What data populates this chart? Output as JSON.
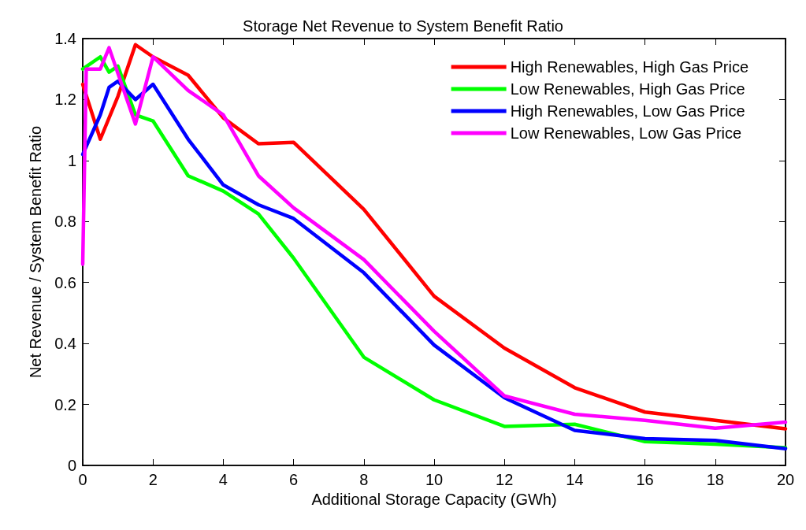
{
  "chart_data": {
    "type": "line",
    "title": "Storage Net Revenue to System Benefit Ratio",
    "xlabel": "Additional Storage Capacity (GWh)",
    "ylabel": "Net Revenue / System Benefit Ratio",
    "xlim": [
      0,
      20
    ],
    "xticks": [
      0,
      2,
      4,
      6,
      8,
      10,
      12,
      14,
      16,
      18,
      20
    ],
    "ylim": [
      0,
      1.4
    ],
    "yticks": [
      0,
      0.2,
      0.4,
      0.6,
      0.8,
      1,
      1.2,
      1.4
    ],
    "grid": false,
    "legend": "top right",
    "marker": "none",
    "line_style": "solid",
    "series": [
      {
        "name": "High Renewables, High Gas Price",
        "color": "#ff0000",
        "x": [
          0,
          0.5,
          1,
          1.5,
          2,
          3,
          4,
          5,
          6,
          8,
          10,
          12,
          14,
          16,
          18,
          20
        ],
        "values": [
          1.25,
          1.07,
          1.21,
          1.38,
          1.34,
          1.28,
          1.14,
          1.055,
          1.06,
          0.84,
          0.555,
          0.385,
          0.255,
          0.175,
          0.148,
          0.12
        ]
      },
      {
        "name": "Low Renewables, High Gas Price",
        "color": "#00ff00",
        "x": [
          0,
          0.5,
          0.75,
          1,
          1.5,
          2,
          3,
          4,
          5,
          6,
          8,
          10,
          12,
          14,
          16,
          18,
          20
        ],
        "values": [
          1.3,
          1.34,
          1.29,
          1.31,
          1.15,
          1.13,
          0.95,
          0.9,
          0.825,
          0.68,
          0.355,
          0.215,
          0.128,
          0.135,
          0.078,
          0.07,
          0.058
        ]
      },
      {
        "name": "High Renewables, Low Gas Price",
        "color": "#0000ff",
        "x": [
          0,
          0.5,
          0.75,
          1,
          1.5,
          2,
          3,
          4,
          5,
          6,
          8,
          10,
          12,
          14,
          16,
          18,
          20
        ],
        "values": [
          1.02,
          1.15,
          1.24,
          1.26,
          1.2,
          1.25,
          1.07,
          0.92,
          0.855,
          0.81,
          0.632,
          0.395,
          0.222,
          0.115,
          0.088,
          0.082,
          0.055
        ]
      },
      {
        "name": "Low Renewables, Low Gas Price",
        "color": "#ff00ff",
        "x": [
          0,
          0.1,
          0.5,
          0.75,
          1.5,
          2,
          3,
          4,
          5,
          6,
          8,
          10,
          12,
          14,
          16,
          18,
          20
        ],
        "values": [
          0.66,
          1.3,
          1.3,
          1.37,
          1.12,
          1.34,
          1.23,
          1.15,
          0.95,
          0.845,
          0.675,
          0.44,
          0.228,
          0.168,
          0.148,
          0.122,
          0.142
        ]
      }
    ]
  }
}
